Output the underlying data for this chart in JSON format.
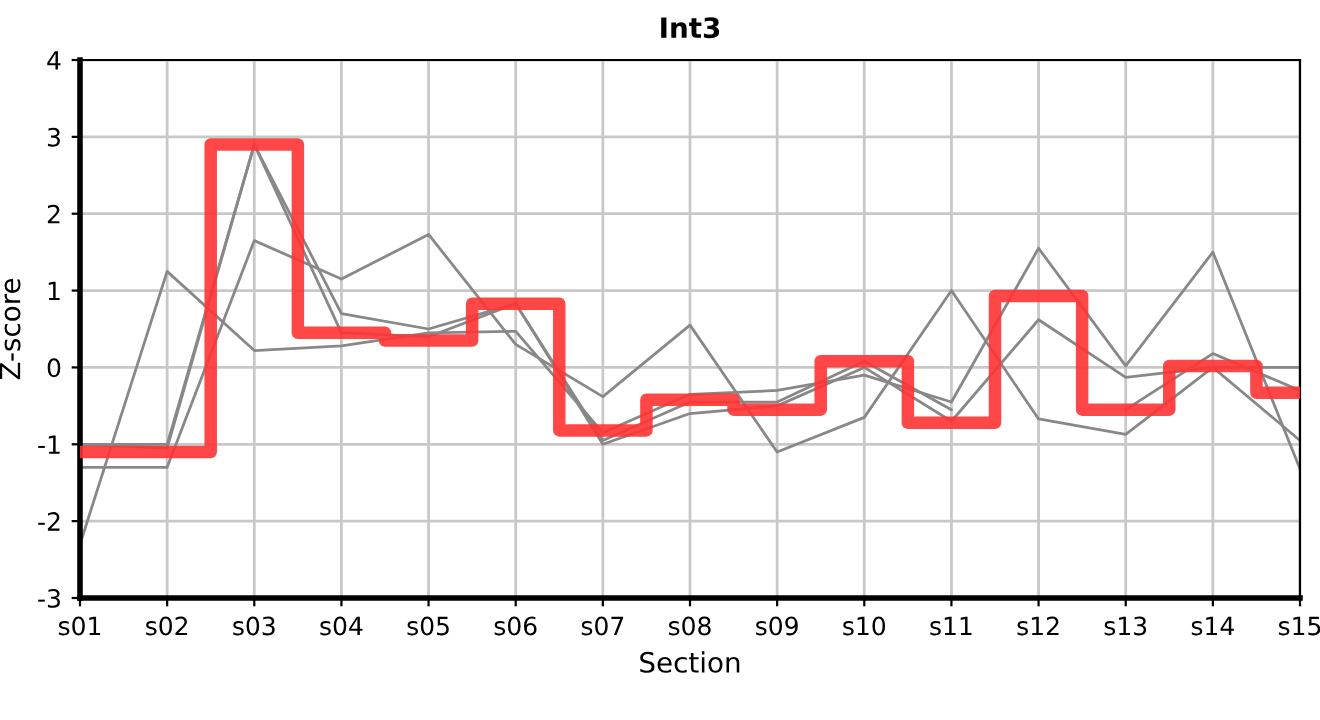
{
  "chart_data": {
    "type": "line",
    "title": "Int3",
    "xlabel": "Section",
    "ylabel": "Z-score",
    "categories": [
      "s01",
      "s02",
      "s03",
      "s04",
      "s05",
      "s06",
      "s07",
      "s08",
      "s09",
      "s10",
      "s11",
      "s12",
      "s13",
      "s14",
      "s15"
    ],
    "series": [
      {
        "color": "#888888",
        "values": [
          -2.3,
          1.25,
          0.22,
          0.28,
          0.45,
          0.47,
          -0.85,
          -0.35,
          -0.3,
          -0.1,
          -0.45,
          1.55,
          0.02,
          1.5,
          -1.32
        ]
      },
      {
        "color": "#888888",
        "values": [
          -1.0,
          -1.0,
          2.9,
          0.7,
          0.5,
          0.83,
          -0.95,
          -0.45,
          -0.45,
          0.08,
          -0.55,
          null,
          -0.55,
          0.18,
          -0.3
        ]
      },
      {
        "color": "#888888",
        "values": [
          -1.3,
          -1.3,
          1.65,
          1.15,
          1.73,
          0.3,
          -0.38,
          0.55,
          -1.1,
          -0.65,
          1.0,
          -0.67,
          -0.87,
          0.0,
          -0.95
        ]
      },
      {
        "color": "#888888",
        "values": [
          -1.0,
          -1.05,
          2.9,
          0.45,
          0.4,
          0.83,
          -1.0,
          -0.6,
          -0.5,
          0.0,
          -0.7,
          0.62,
          -0.13,
          0.0,
          0.0
        ]
      },
      {
        "type": "step",
        "color": "#ff3333",
        "values": [
          -1.1,
          -1.1,
          2.9,
          0.45,
          0.35,
          0.83,
          -0.82,
          -0.42,
          -0.55,
          0.08,
          -0.72,
          0.93,
          -0.55,
          0.02,
          -0.33
        ]
      }
    ],
    "ylim": [
      -3,
      4
    ],
    "yticks": [
      -3,
      -2,
      -1,
      0,
      1,
      2,
      3,
      4
    ],
    "grid": true,
    "marker": "none",
    "line_style": "solid"
  }
}
